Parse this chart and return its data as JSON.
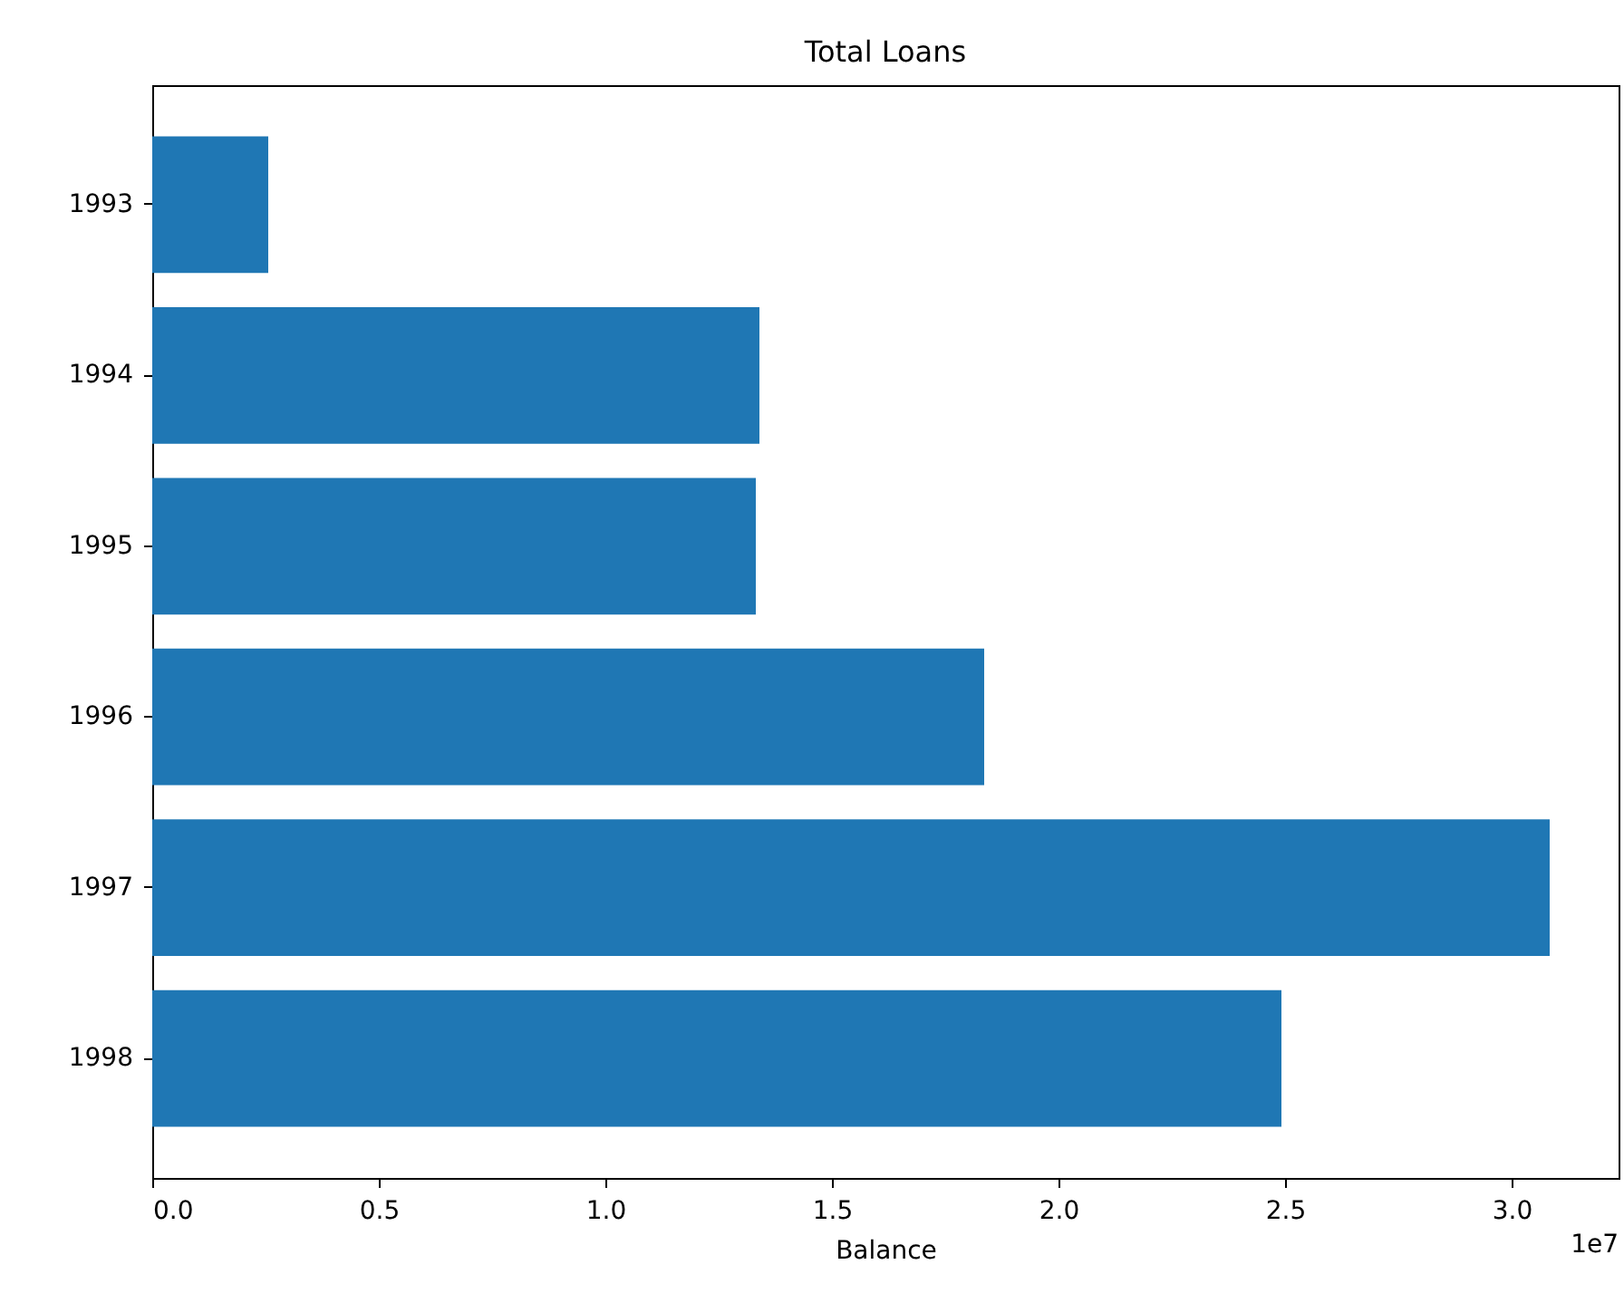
{
  "chart_data": {
    "type": "bar",
    "orientation": "horizontal",
    "title": "Total Loans",
    "xlabel": "Balance",
    "categories": [
      "1993",
      "1994",
      "1995",
      "1996",
      "1997",
      "1998"
    ],
    "values": [
      0.256,
      1.34,
      1.332,
      1.836,
      3.084,
      2.492
    ],
    "color": "#1f77b4",
    "xlim": [
      0,
      3.236
    ],
    "xticks": [
      {
        "value": 0,
        "label": "0.0"
      },
      0.5,
      {
        "value": 1,
        "label": "1.0"
      },
      1.5,
      {
        "value": 2,
        "label": "2.0"
      },
      2.5,
      {
        "value": 3,
        "label": "3.0"
      }
    ],
    "annotations": [
      "1e7"
    ]
  }
}
